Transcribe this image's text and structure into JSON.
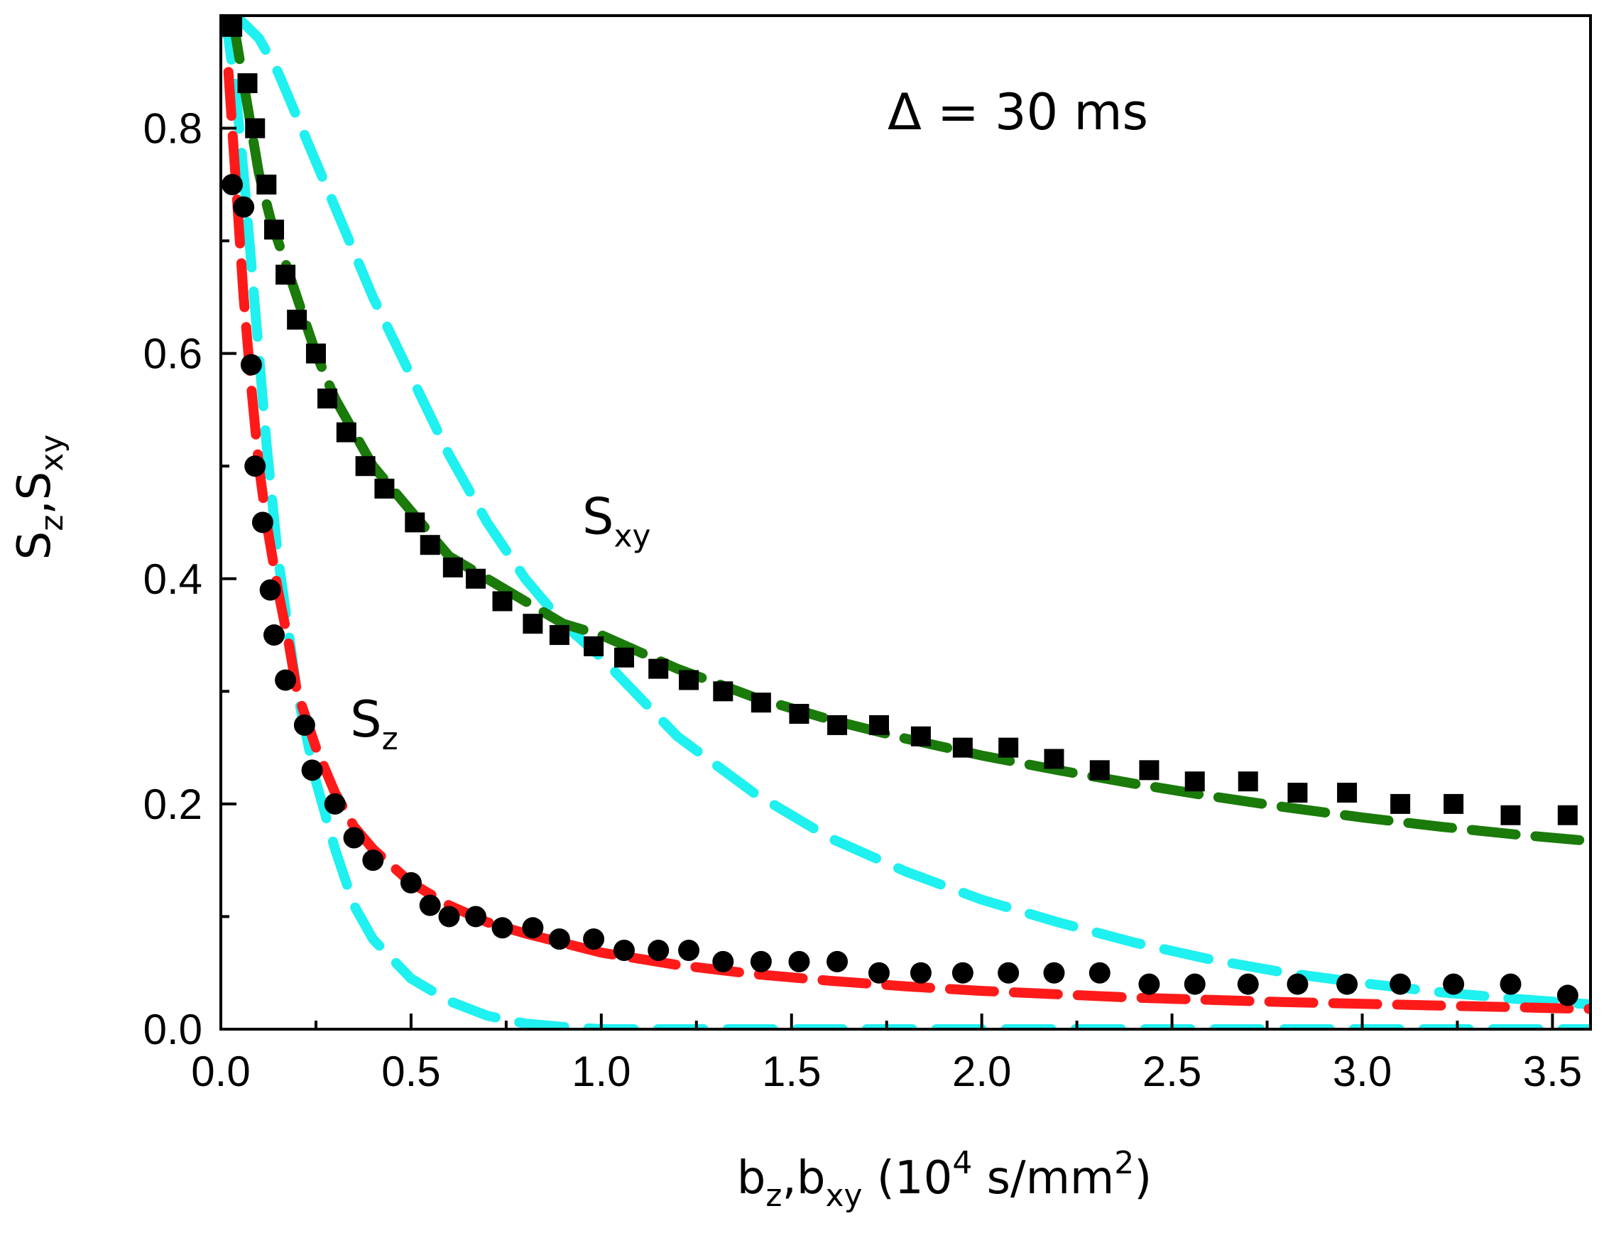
{
  "chart_data": {
    "type": "scatter",
    "title": "",
    "annotation": "Δ = 30 ms",
    "xlabel": {
      "parts": [
        [
          "b",
          ""
        ],
        [
          "z",
          "sub"
        ],
        [
          ",b",
          ""
        ],
        [
          "xy",
          "sub"
        ],
        [
          " (10",
          ""
        ],
        [
          "4",
          "sup"
        ],
        [
          " s/mm",
          ""
        ],
        [
          "2",
          "sup"
        ],
        [
          ")",
          ""
        ]
      ]
    },
    "ylabel": {
      "parts": [
        [
          "S",
          ""
        ],
        [
          "z",
          "sub"
        ],
        [
          ",S",
          ""
        ],
        [
          "xy",
          "sub"
        ]
      ]
    },
    "curve_labels": [
      {
        "name": "sxy-label",
        "parts": [
          [
            "S",
            ""
          ],
          [
            "xy",
            "sub"
          ]
        ],
        "x": 0.95,
        "y": 0.455
      },
      {
        "name": "sz-label",
        "parts": [
          [
            "S",
            ""
          ],
          [
            "z",
            "sub"
          ]
        ],
        "x": 0.34,
        "y": 0.275
      }
    ],
    "xlim": [
      0,
      3.6
    ],
    "ylim": [
      0,
      0.9
    ],
    "xticks": [
      0.0,
      0.5,
      1.0,
      1.5,
      2.0,
      2.5,
      3.0,
      3.5
    ],
    "xtick_labels": [
      "0.0",
      "0.5",
      "1.0",
      "1.5",
      "2.0",
      "2.5",
      "3.0",
      "3.5"
    ],
    "yticks": [
      0.0,
      0.2,
      0.4,
      0.6,
      0.8
    ],
    "ytick_labels": [
      "0.0",
      "0.2",
      "0.4",
      "0.6",
      "0.8"
    ],
    "colors": {
      "sxy_points": "#000000",
      "sz_points": "#000000",
      "sxy_fit": "#1a7a0a",
      "sz_fit": "#ff1a1a",
      "model": "#1ff0f0"
    },
    "series": [
      {
        "name": "Sxy-data",
        "marker": "square",
        "color": "#000000",
        "x": [
          0.03,
          0.07,
          0.09,
          0.12,
          0.14,
          0.17,
          0.2,
          0.25,
          0.28,
          0.33,
          0.38,
          0.43,
          0.51,
          0.55,
          0.61,
          0.67,
          0.74,
          0.82,
          0.89,
          0.98,
          1.06,
          1.15,
          1.23,
          1.32,
          1.42,
          1.52,
          1.62,
          1.73,
          1.84,
          1.95,
          2.07,
          2.19,
          2.31,
          2.44,
          2.56,
          2.7,
          2.83,
          2.96,
          3.1,
          3.24,
          3.39,
          3.54
        ],
        "y": [
          0.89,
          0.84,
          0.8,
          0.75,
          0.71,
          0.67,
          0.63,
          0.6,
          0.56,
          0.53,
          0.5,
          0.48,
          0.45,
          0.43,
          0.41,
          0.4,
          0.38,
          0.36,
          0.35,
          0.34,
          0.33,
          0.32,
          0.31,
          0.3,
          0.29,
          0.28,
          0.27,
          0.27,
          0.26,
          0.25,
          0.25,
          0.24,
          0.23,
          0.23,
          0.22,
          0.22,
          0.21,
          0.21,
          0.2,
          0.2,
          0.19,
          0.19
        ]
      },
      {
        "name": "Sz-data",
        "marker": "circle",
        "color": "#000000",
        "x": [
          0.03,
          0.06,
          0.08,
          0.09,
          0.11,
          0.13,
          0.14,
          0.17,
          0.22,
          0.24,
          0.3,
          0.35,
          0.4,
          0.5,
          0.55,
          0.6,
          0.67,
          0.74,
          0.82,
          0.89,
          0.98,
          1.06,
          1.15,
          1.23,
          1.32,
          1.42,
          1.52,
          1.62,
          1.73,
          1.84,
          1.95,
          2.07,
          2.19,
          2.31,
          2.44,
          2.56,
          2.7,
          2.83,
          2.96,
          3.1,
          3.24,
          3.39,
          3.54
        ],
        "y": [
          0.75,
          0.73,
          0.59,
          0.5,
          0.45,
          0.39,
          0.35,
          0.31,
          0.27,
          0.23,
          0.2,
          0.17,
          0.15,
          0.13,
          0.11,
          0.1,
          0.1,
          0.09,
          0.09,
          0.08,
          0.08,
          0.07,
          0.07,
          0.07,
          0.06,
          0.06,
          0.06,
          0.06,
          0.05,
          0.05,
          0.05,
          0.05,
          0.05,
          0.05,
          0.04,
          0.04,
          0.04,
          0.04,
          0.04,
          0.04,
          0.04,
          0.04,
          0.03
        ]
      },
      {
        "name": "Sxy-fit",
        "style": "dash",
        "color": "#1a7a0a",
        "x": [
          0.03,
          0.05,
          0.08,
          0.1,
          0.13,
          0.15,
          0.2,
          0.25,
          0.3,
          0.4,
          0.5,
          0.6,
          0.7,
          0.8,
          0.9,
          1.0,
          1.2,
          1.4,
          1.6,
          1.8,
          2.0,
          2.2,
          2.4,
          2.6,
          2.8,
          3.0,
          3.2,
          3.4,
          3.6
        ],
        "y": [
          0.9,
          0.86,
          0.8,
          0.76,
          0.72,
          0.7,
          0.65,
          0.6,
          0.56,
          0.5,
          0.46,
          0.42,
          0.4,
          0.38,
          0.36,
          0.35,
          0.32,
          0.295,
          0.275,
          0.258,
          0.243,
          0.23,
          0.218,
          0.207,
          0.197,
          0.188,
          0.18,
          0.173,
          0.167
        ]
      },
      {
        "name": "Sz-fit",
        "style": "dash",
        "color": "#ff1a1a",
        "x": [
          0.02,
          0.04,
          0.06,
          0.08,
          0.1,
          0.12,
          0.15,
          0.18,
          0.2,
          0.25,
          0.3,
          0.35,
          0.4,
          0.5,
          0.6,
          0.7,
          0.8,
          1.0,
          1.2,
          1.4,
          1.6,
          1.8,
          2.0,
          2.4,
          2.8,
          3.2,
          3.6
        ],
        "y": [
          0.85,
          0.75,
          0.65,
          0.57,
          0.5,
          0.45,
          0.39,
          0.34,
          0.3,
          0.25,
          0.21,
          0.18,
          0.16,
          0.13,
          0.11,
          0.095,
          0.085,
          0.068,
          0.057,
          0.049,
          0.043,
          0.038,
          0.034,
          0.028,
          0.024,
          0.021,
          0.018
        ]
      },
      {
        "name": "Sxy-model",
        "style": "dash",
        "color": "#1ff0f0",
        "x": [
          0.04,
          0.1,
          0.15,
          0.2,
          0.25,
          0.3,
          0.4,
          0.5,
          0.6,
          0.7,
          0.8,
          0.9,
          1.0,
          1.2,
          1.4,
          1.6,
          1.8,
          2.0,
          2.2,
          2.4,
          2.6,
          2.8,
          3.0,
          3.2,
          3.4,
          3.6
        ],
        "y": [
          0.9,
          0.88,
          0.85,
          0.81,
          0.77,
          0.73,
          0.65,
          0.58,
          0.51,
          0.45,
          0.4,
          0.36,
          0.33,
          0.26,
          0.21,
          0.17,
          0.14,
          0.115,
          0.095,
          0.077,
          0.062,
          0.05,
          0.041,
          0.033,
          0.027,
          0.022
        ]
      },
      {
        "name": "Sz-model",
        "style": "dash",
        "color": "#1ff0f0",
        "x": [
          0.0,
          0.02,
          0.04,
          0.06,
          0.08,
          0.1,
          0.12,
          0.15,
          0.2,
          0.25,
          0.3,
          0.35,
          0.4,
          0.5,
          0.6,
          0.7,
          0.8,
          0.9,
          1.0,
          1.2,
          1.5,
          2.0,
          2.5,
          3.0,
          3.6
        ],
        "y": [
          0.9,
          0.88,
          0.83,
          0.76,
          0.68,
          0.6,
          0.52,
          0.42,
          0.3,
          0.22,
          0.16,
          0.11,
          0.08,
          0.045,
          0.025,
          0.012,
          0.005,
          0.002,
          0.0,
          0.0,
          0.0,
          0.0,
          0.0,
          0.0,
          0.0
        ]
      }
    ]
  }
}
